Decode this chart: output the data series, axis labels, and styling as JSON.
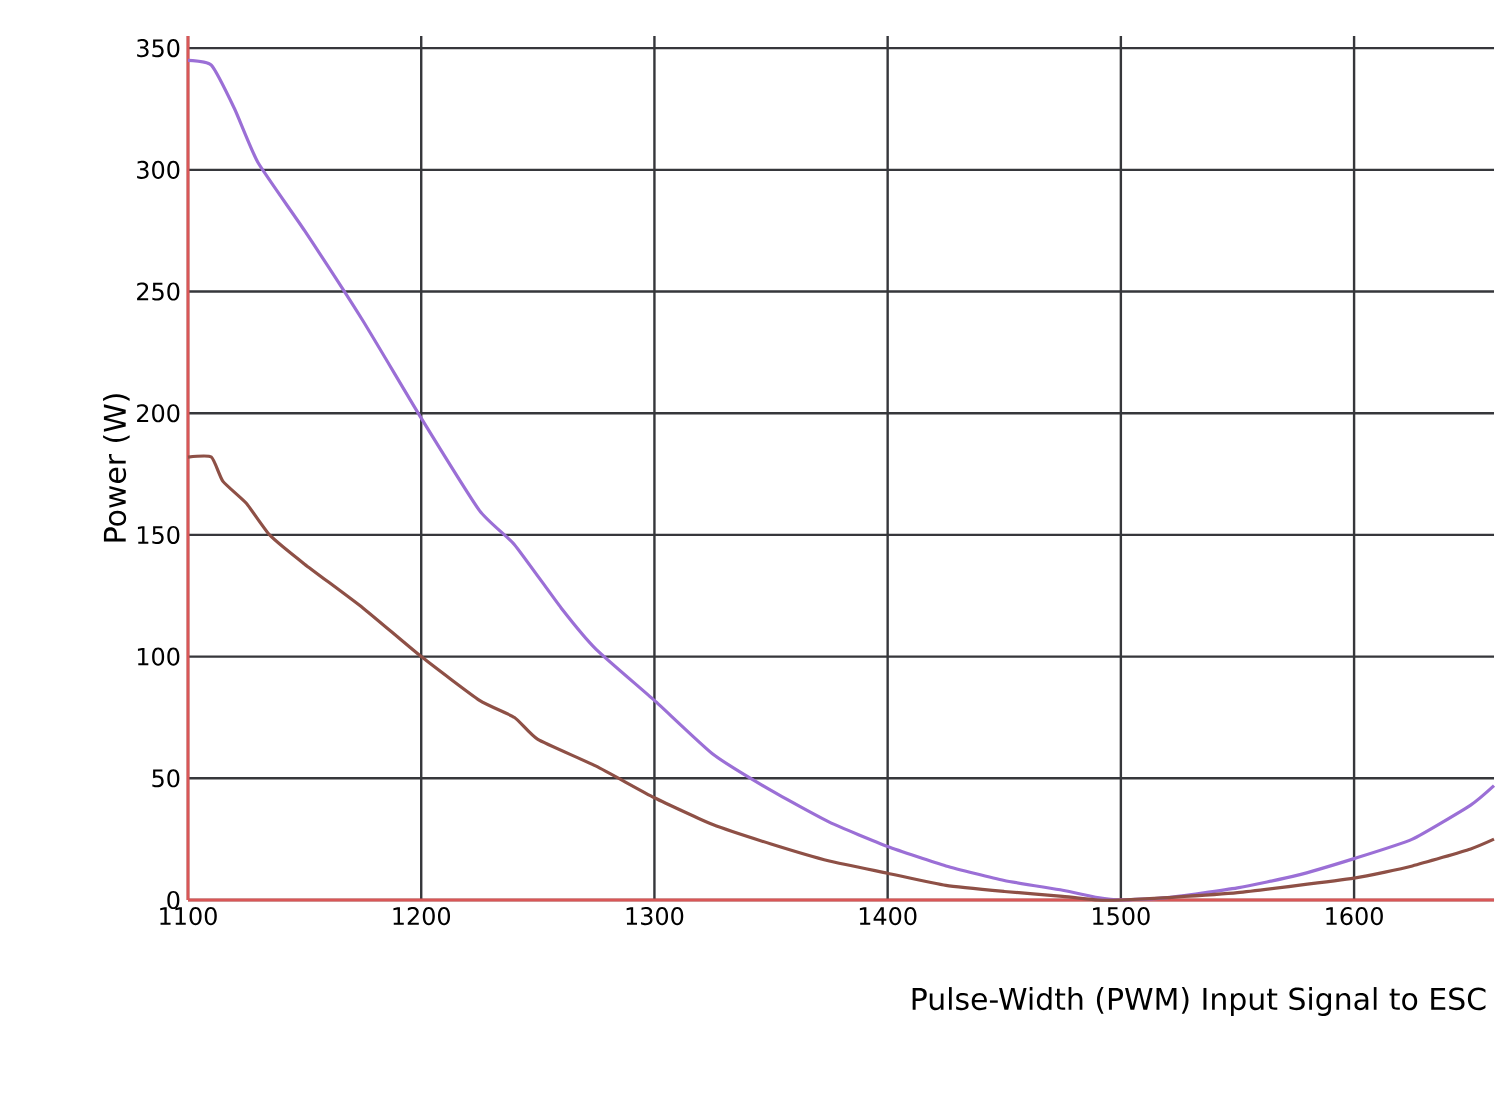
{
  "chart_data": {
    "type": "line",
    "xlabel": "Pulse-Width (PWM) Input Signal to ESC",
    "ylabel": "Power (W)",
    "xlim": [
      1100,
      1660
    ],
    "ylim": [
      0,
      355
    ],
    "xticks": [
      1100,
      1200,
      1300,
      1400,
      1500,
      1600
    ],
    "yticks": [
      0,
      50,
      100,
      150,
      200,
      250,
      300,
      350
    ],
    "grid": true,
    "series": [
      {
        "color": "#9b6fd6",
        "x": [
          1100,
          1110,
          1120,
          1130,
          1150,
          1175,
          1200,
          1225,
          1240,
          1260,
          1275,
          1300,
          1325,
          1350,
          1375,
          1400,
          1425,
          1450,
          1475,
          1490,
          1500,
          1520,
          1550,
          1575,
          1600,
          1625,
          1650,
          1660
        ],
        "values": [
          345,
          343,
          325,
          303,
          275,
          238,
          198,
          160,
          146,
          120,
          103,
          82,
          60,
          45,
          32,
          22,
          14,
          8,
          4,
          1,
          0,
          1,
          5,
          10,
          17,
          25,
          39,
          47
        ]
      },
      {
        "color": "#8e5046",
        "x": [
          1100,
          1110,
          1115,
          1125,
          1135,
          1150,
          1175,
          1200,
          1225,
          1240,
          1250,
          1275,
          1300,
          1325,
          1350,
          1375,
          1400,
          1425,
          1450,
          1475,
          1490,
          1500,
          1520,
          1550,
          1600,
          1625,
          1650,
          1660
        ],
        "values": [
          182,
          182,
          172,
          163,
          150,
          138,
          120,
          100,
          82,
          75,
          66,
          55,
          42,
          31,
          23,
          16,
          11,
          6,
          3.5,
          1.5,
          0,
          0,
          1,
          3,
          9,
          14,
          21,
          25
        ]
      }
    ]
  }
}
